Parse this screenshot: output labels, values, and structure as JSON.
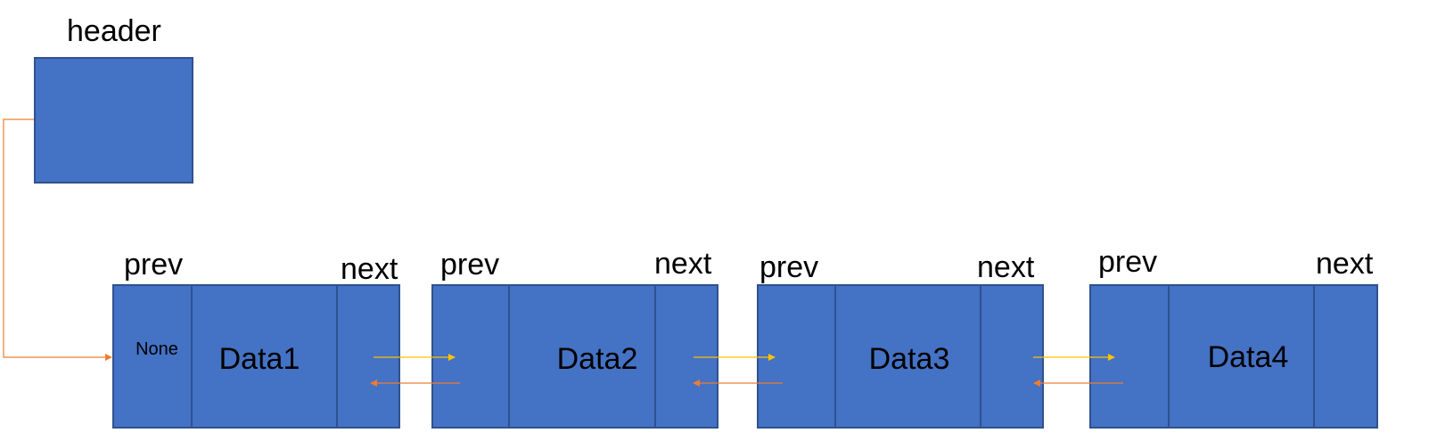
{
  "header": {
    "label": "header"
  },
  "nodes": [
    {
      "prev_label": "prev",
      "next_label": "next",
      "data": "Data1",
      "prev_value": "None"
    },
    {
      "prev_label": "prev",
      "next_label": "next",
      "data": "Data2",
      "prev_value": ""
    },
    {
      "prev_label": "prev",
      "next_label": "next",
      "data": "Data3",
      "prev_value": ""
    },
    {
      "prev_label": "prev",
      "next_label": "next",
      "data": "Data4",
      "prev_value": ""
    }
  ],
  "colors": {
    "node_fill": "#4472c4",
    "node_border": "#2f528f",
    "next_arrow": "#ffc000",
    "prev_arrow": "#ed7d31",
    "header_arrow": "#ed7d31"
  }
}
